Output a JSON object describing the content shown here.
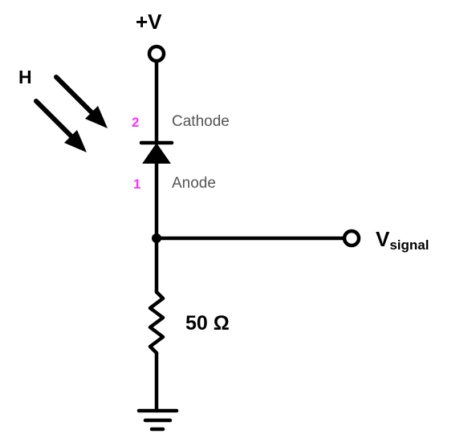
{
  "labels": {
    "supply": "+V",
    "light": "H",
    "cathode_pin": "2",
    "cathode": "Cathode",
    "anode_pin": "1",
    "anode": "Anode",
    "signal_main": "V",
    "signal_sub": "signal",
    "resistor": "50 Ω"
  },
  "colors": {
    "pin_number": "#ff33ff",
    "pin_name": "#555555",
    "ink": "#000000"
  },
  "components": {
    "photodiode": "photodiode-symbol",
    "resistor": "resistor-symbol",
    "ground": "ground-symbol"
  }
}
